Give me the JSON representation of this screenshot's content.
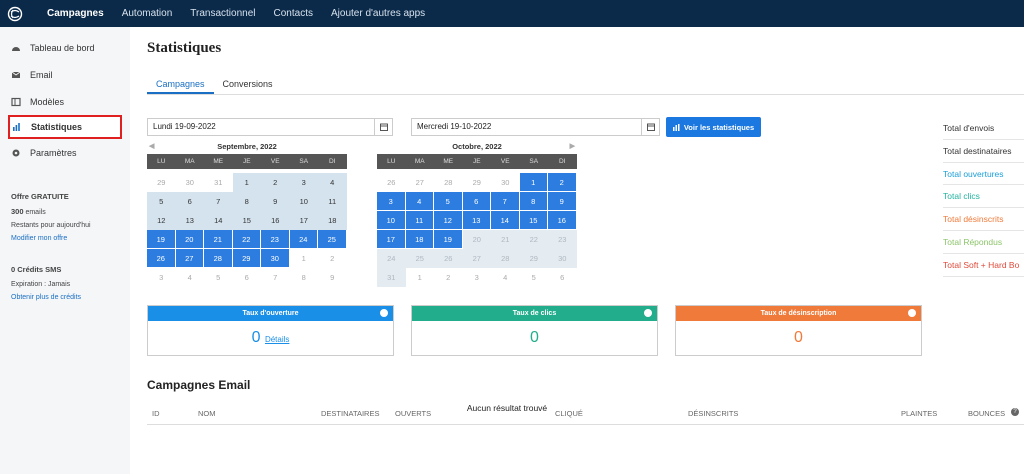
{
  "topnav": {
    "items": [
      "Campagnes",
      "Automation",
      "Transactionnel",
      "Contacts",
      "Ajouter d'autres apps"
    ]
  },
  "sidebar": {
    "items": [
      "Tableau de bord",
      "Email",
      "Modèles",
      "Statistiques",
      "Paramètres"
    ],
    "offer": {
      "title": "Offre GRATUITE",
      "emails_count": "300",
      "emails_word": " emails",
      "remaining": "Restants pour aujourd'hui",
      "link": "Modifier mon offre"
    },
    "sms": {
      "title": "0 Crédits SMS",
      "expiration": "Expiration : Jamais",
      "link": "Obtenir plus de crédits"
    }
  },
  "page": {
    "title": "Statistiques",
    "tabs": [
      "Campagnes",
      "Conversions"
    ]
  },
  "filters": {
    "start_date": "Lundi 19-09-2022",
    "end_date": "Mercredi 19-10-2022",
    "button": "Voir les statistiques"
  },
  "calendars": [
    {
      "month": "Septembre, 2022",
      "days": [
        "LU",
        "MA",
        "ME",
        "JE",
        "VE",
        "SA",
        "DI"
      ],
      "cells": [
        "29",
        "30",
        "31",
        "1",
        "2",
        "3",
        "4",
        "5",
        "6",
        "7",
        "8",
        "9",
        "10",
        "11",
        "12",
        "13",
        "14",
        "15",
        "16",
        "17",
        "18",
        "19",
        "20",
        "21",
        "22",
        "23",
        "24",
        "25",
        "26",
        "27",
        "28",
        "29",
        "30",
        "1",
        "2",
        "3",
        "4",
        "5",
        "6",
        "7",
        "8",
        "9"
      ]
    },
    {
      "month": "Octobre, 2022",
      "days": [
        "LU",
        "MA",
        "ME",
        "JE",
        "VE",
        "SA",
        "DI"
      ],
      "cells": [
        "26",
        "27",
        "28",
        "29",
        "30",
        "1",
        "2",
        "3",
        "4",
        "5",
        "6",
        "7",
        "8",
        "9",
        "10",
        "11",
        "12",
        "13",
        "14",
        "15",
        "16",
        "17",
        "18",
        "19",
        "20",
        "21",
        "22",
        "23",
        "24",
        "25",
        "26",
        "27",
        "28",
        "29",
        "30",
        "31",
        "1",
        "2",
        "3",
        "4",
        "5",
        "6"
      ]
    }
  ],
  "totals": [
    {
      "label": "Total d'envois",
      "color": "#333333"
    },
    {
      "label": "Total destinataires",
      "color": "#333333"
    },
    {
      "label": "Total ouvertures",
      "color": "#1a9fd8"
    },
    {
      "label": "Total clics",
      "color": "#22b3a0"
    },
    {
      "label": "Total désinscrits",
      "color": "#f07a3a"
    },
    {
      "label": "Total Répondus",
      "color": "#8cc46a"
    },
    {
      "label": "Total Soft + Hard Bo",
      "color": "#e04a3a"
    }
  ],
  "kpis": [
    {
      "title": "Taux d'ouverture",
      "value": "0",
      "link": "Détails",
      "color": "#1a8fe8"
    },
    {
      "title": "Taux de clics",
      "value": "0",
      "color": "#22ad8c"
    },
    {
      "title": "Taux de désinscription",
      "value": "0",
      "color": "#f07a3a"
    }
  ],
  "campaigns": {
    "title": "Campagnes Email",
    "columns": [
      "ID",
      "NOM",
      "DESTINATAIRES",
      "OUVERTS",
      "CLIQUÉ",
      "DÉSINSCRITS",
      "PLAINTES",
      "BOUNCES"
    ],
    "empty": "Aucun résultat trouvé"
  }
}
